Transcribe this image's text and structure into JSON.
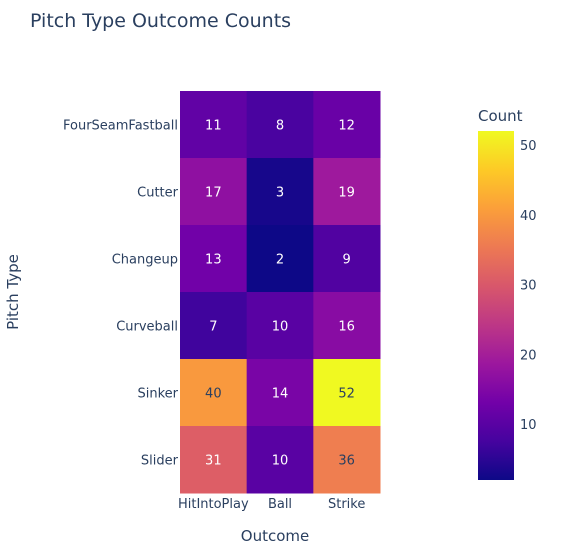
{
  "chart_data": {
    "type": "heatmap",
    "title": "Pitch Type Outcome Counts",
    "xlabel": "Outcome",
    "ylabel": "Pitch Type",
    "x": [
      "HitIntoPlay",
      "Ball",
      "Strike"
    ],
    "y": [
      "FourSeamFastball",
      "Cutter",
      "Changeup",
      "Curveball",
      "Sinker",
      "Slider"
    ],
    "z": [
      [
        11,
        8,
        12
      ],
      [
        17,
        3,
        19
      ],
      [
        13,
        2,
        9
      ],
      [
        7,
        10,
        16
      ],
      [
        40,
        14,
        52
      ],
      [
        31,
        10,
        36
      ]
    ],
    "colorbar": {
      "title": "Count",
      "ticks": [
        10,
        20,
        30,
        40,
        50
      ],
      "range": [
        2,
        52
      ]
    },
    "colorscale": [
      "#0d0887",
      "#46039f",
      "#7201a8",
      "#9c179e",
      "#bd3786",
      "#d8576b",
      "#ed7953",
      "#fb9f3a",
      "#fdca26",
      "#f0f921"
    ]
  }
}
